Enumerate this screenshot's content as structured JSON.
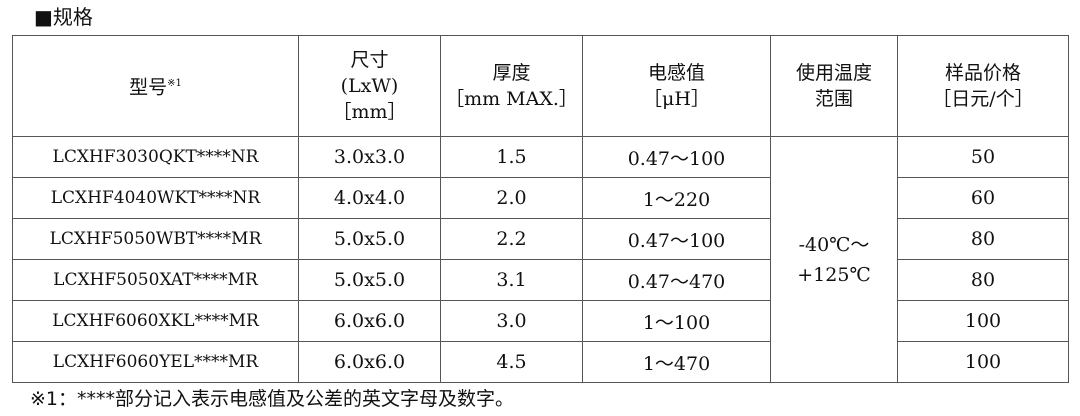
{
  "heading": "■规格",
  "table": {
    "header": {
      "model": {
        "text": "型号",
        "note": "※1"
      },
      "size": [
        "尺寸",
        "(LxW)",
        "［mm］"
      ],
      "thickness": [
        "厚度",
        "［mm MAX.］"
      ],
      "inductance": [
        "电感值",
        "［μH］"
      ],
      "temperature": [
        "使用温度",
        "范围"
      ],
      "price": [
        "样品价格",
        "［日元/个］"
      ]
    },
    "rows": [
      [
        "LCXHF3030QKT****NR",
        "3.0x3.0",
        "1.5",
        "0.47～100",
        "50"
      ],
      [
        "LCXHF4040WKT****NR",
        "4.0x4.0",
        "2.0",
        "1～220",
        "60"
      ],
      [
        "LCXHF5050WBT****MR",
        "5.0x5.0",
        "2.2",
        "0.47～100",
        "80"
      ],
      [
        "LCXHF5050XAT****MR",
        "5.0x5.0",
        "3.1",
        "0.47～470",
        "80"
      ],
      [
        "LCXHF6060XKL****MR",
        "6.0x6.0",
        "3.0",
        "1～100",
        "100"
      ],
      [
        "LCXHF6060YEL****MR",
        "6.0x6.0",
        "4.5",
        "1～470",
        "100"
      ]
    ],
    "temperature": [
      "-40℃～",
      "+125℃"
    ]
  },
  "footnote": "※1：****部分记入表示电感值及公差的英文字母及数字。"
}
